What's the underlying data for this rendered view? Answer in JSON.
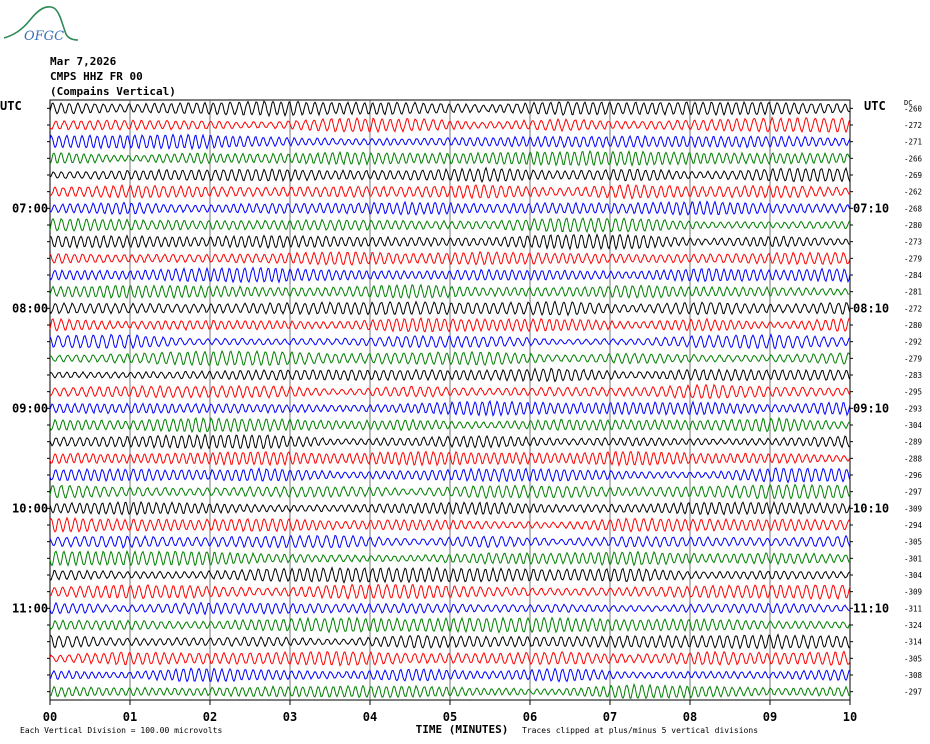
{
  "header": {
    "logo_text": "OFGC",
    "date": "Mar 7,2026",
    "station": "CMPS HHZ FR 00",
    "description": "(Compains Vertical)"
  },
  "chart_data": {
    "type": "line",
    "title": "",
    "left_axis_label": "UTC",
    "right_axis_label": "UTC",
    "dc_label": "DC",
    "xlabel": "TIME (MINUTES)",
    "x_ticks": [
      "00",
      "01",
      "02",
      "03",
      "04",
      "05",
      "06",
      "07",
      "08",
      "09",
      "10"
    ],
    "xlim": [
      0,
      10
    ],
    "left_time_labels": [
      {
        "row": 6,
        "label": "07:00"
      },
      {
        "row": 12,
        "label": "08:00"
      },
      {
        "row": 18,
        "label": "09:00"
      },
      {
        "row": 24,
        "label": "10:00"
      },
      {
        "row": 30,
        "label": "11:00"
      }
    ],
    "right_time_labels": [
      {
        "row": 6,
        "label": "07:10"
      },
      {
        "row": 12,
        "label": "08:10"
      },
      {
        "row": 18,
        "label": "09:10"
      },
      {
        "row": 24,
        "label": "10:10"
      },
      {
        "row": 30,
        "label": "11:10"
      }
    ],
    "dc_offsets": [
      "-260",
      "-272",
      "-271",
      "-266",
      "-269",
      "-262",
      "-268",
      "-280",
      "-273",
      "-279",
      "-284",
      "-281",
      "-272",
      "-280",
      "-292",
      "-279",
      "-283",
      "-295",
      "-293",
      "-304",
      "-289",
      "-288",
      "-296",
      "-297",
      "-309",
      "-294",
      "-305",
      "-301",
      "-304",
      "-309",
      "-311",
      "-324",
      "-314",
      "-305",
      "-308",
      "-297"
    ],
    "trace_colors": [
      "#000000",
      "#ff0000",
      "#0000ff",
      "#008000"
    ],
    "footer_left": "Each Vertical Division =  100.00 microvolts",
    "footer_right": "Traces clipped at plus/minus 5 vertical divisions"
  }
}
